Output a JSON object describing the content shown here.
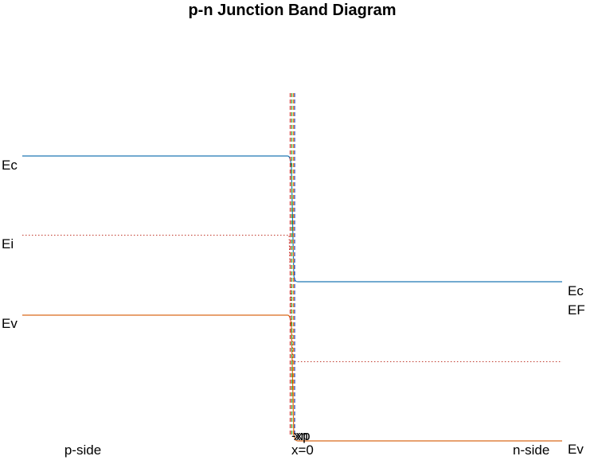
{
  "title": "p-n Junction Band Diagram",
  "labels": {
    "left_ec": "Ec",
    "left_ei": "Ei",
    "left_ev": "Ev",
    "right_ec": "Ec",
    "right_ef": "EF",
    "right_ev": "Ev",
    "p_side": "p-side",
    "n_side": "n-side",
    "x0": "x=0",
    "xn": "xn",
    "xp": "-xp"
  },
  "colors": {
    "ec": "#1f77b4",
    "ev": "#d9691a",
    "ei": "#c0392b",
    "marker_red": "#d62728",
    "marker_green": "#2ca02c",
    "marker_orange": "#ff7f0e",
    "marker_blue": "#1f3fbf"
  }
}
